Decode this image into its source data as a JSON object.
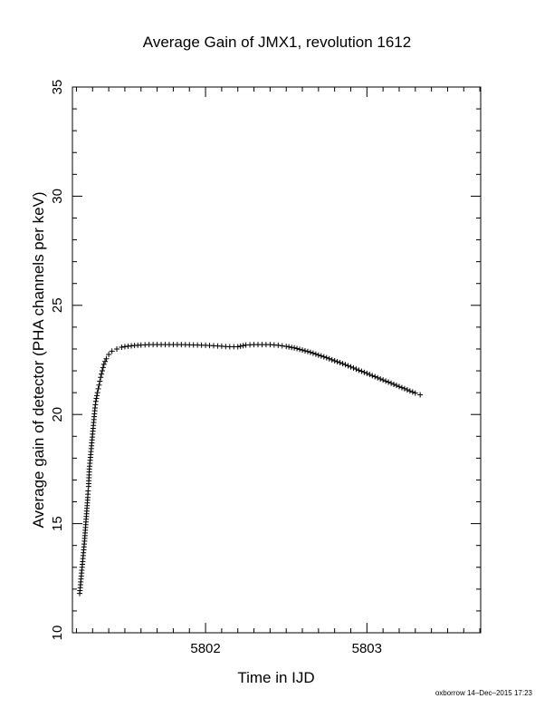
{
  "chart_data": {
    "type": "scatter",
    "title": "Average Gain of JMX1, revolution 1612",
    "xlabel": "Time in IJD",
    "ylabel": "Average gain of detector (PHA channels per keV)",
    "xlim": [
      5801.175,
      5803.705
    ],
    "ylim": [
      10,
      35
    ],
    "xticks": [
      5802,
      5803
    ],
    "yticks": [
      10,
      15,
      20,
      25,
      30,
      35
    ],
    "grid": false,
    "marker": "plus",
    "color": "#000000",
    "series": [
      {
        "points": [
          [
            5801.22,
            11.8
          ],
          [
            5801.225,
            12.2
          ],
          [
            5801.23,
            12.6
          ],
          [
            5801.235,
            13.0
          ],
          [
            5801.24,
            13.4
          ],
          [
            5801.245,
            13.8
          ],
          [
            5801.25,
            14.2
          ],
          [
            5801.255,
            14.7
          ],
          [
            5801.26,
            15.2
          ],
          [
            5801.265,
            15.7
          ],
          [
            5801.27,
            16.2
          ],
          [
            5801.272,
            16.5
          ],
          [
            5801.275,
            16.7
          ],
          [
            5801.28,
            17.5
          ],
          [
            5801.285,
            17.9
          ],
          [
            5801.29,
            18.3
          ],
          [
            5801.295,
            18.7
          ],
          [
            5801.3,
            19.1
          ],
          [
            5801.305,
            19.5
          ],
          [
            5801.31,
            19.9
          ],
          [
            5801.315,
            20.3
          ],
          [
            5801.32,
            20.6
          ],
          [
            5801.33,
            21.0
          ],
          [
            5801.34,
            21.35
          ],
          [
            5801.35,
            21.7
          ],
          [
            5801.36,
            22.0
          ],
          [
            5801.37,
            22.3
          ],
          [
            5801.385,
            22.55
          ],
          [
            5801.4,
            22.75
          ],
          [
            5801.42,
            22.9
          ],
          [
            5801.45,
            23.0
          ],
          [
            5801.48,
            23.08
          ],
          [
            5801.52,
            23.13
          ],
          [
            5801.56,
            23.16
          ],
          [
            5801.6,
            23.18
          ],
          [
            5801.65,
            23.2
          ],
          [
            5801.7,
            23.2
          ],
          [
            5801.75,
            23.2
          ],
          [
            5801.8,
            23.2
          ],
          [
            5801.85,
            23.2
          ],
          [
            5801.9,
            23.19
          ],
          [
            5801.95,
            23.18
          ],
          [
            5802.0,
            23.17
          ],
          [
            5802.05,
            23.15
          ],
          [
            5802.1,
            23.13
          ],
          [
            5802.15,
            23.1
          ],
          [
            5802.2,
            23.1
          ],
          [
            5802.25,
            23.18
          ],
          [
            5802.3,
            23.2
          ],
          [
            5802.35,
            23.2
          ],
          [
            5802.4,
            23.2
          ],
          [
            5802.45,
            23.17
          ],
          [
            5802.5,
            23.12
          ],
          [
            5802.55,
            23.05
          ],
          [
            5802.6,
            22.95
          ],
          [
            5802.65,
            22.85
          ],
          [
            5802.7,
            22.72
          ],
          [
            5802.75,
            22.6
          ],
          [
            5802.8,
            22.46
          ],
          [
            5802.85,
            22.33
          ],
          [
            5802.9,
            22.18
          ],
          [
            5802.95,
            22.03
          ],
          [
            5803.0,
            21.88
          ],
          [
            5803.05,
            21.73
          ],
          [
            5803.1,
            21.58
          ],
          [
            5803.15,
            21.43
          ],
          [
            5803.2,
            21.28
          ],
          [
            5803.25,
            21.13
          ],
          [
            5803.3,
            20.98
          ],
          [
            5803.33,
            20.9
          ]
        ]
      }
    ]
  },
  "footer": {
    "credit": "oxborrow 14–Dec–2015 17:23"
  }
}
